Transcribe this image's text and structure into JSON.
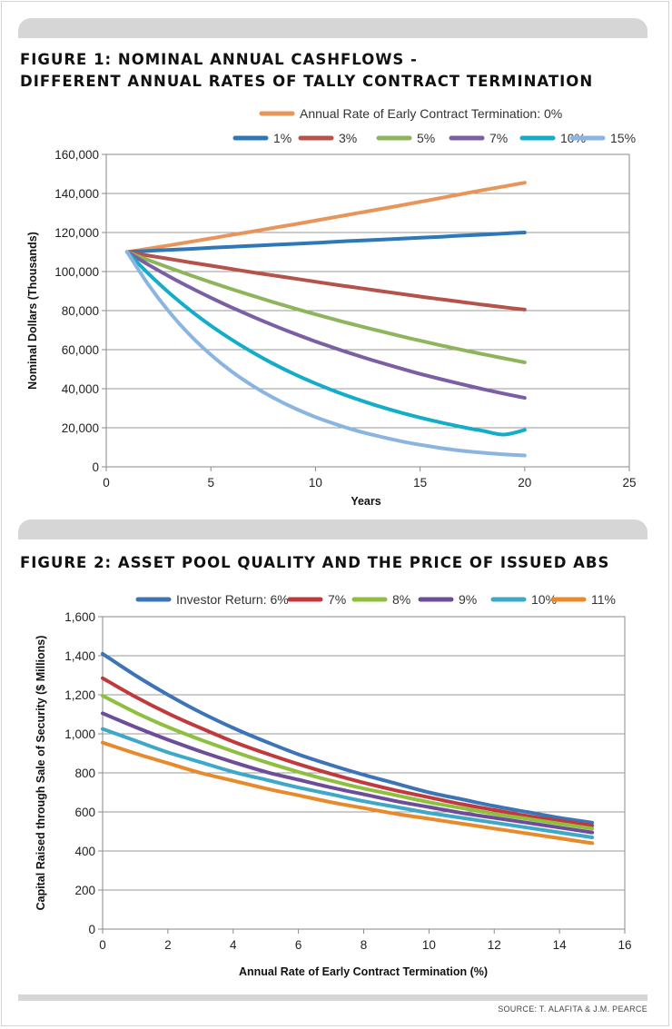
{
  "figure1": {
    "title_line1": "FIGURE 1: NOMINAL ANNUAL CASHFLOWS -",
    "title_line2": "DIFFERENT ANNUAL RATES OF TALLY CONTRACT TERMINATION"
  },
  "figure2": {
    "title": "FIGURE 2: ASSET POOL QUALITY AND THE PRICE OF ISSUED ABS"
  },
  "source": "SOURCE: T. ALAFITA & J.M. PEARCE",
  "chart_data": [
    {
      "type": "line",
      "title": "FIGURE 1: NOMINAL ANNUAL CASHFLOWS - DIFFERENT ANNUAL RATES OF TALLY CONTRACT TERMINATION",
      "xlabel": "Years",
      "ylabel": "Nominal Dollars (Thousands)",
      "xlim": [
        0,
        25
      ],
      "ylim": [
        0,
        160000
      ],
      "xticks": [
        0,
        5,
        10,
        15,
        20,
        25
      ],
      "yticks": [
        0,
        20000,
        40000,
        60000,
        80000,
        100000,
        120000,
        140000,
        160000
      ],
      "ytick_labels": [
        "0",
        "20,000",
        "40,000",
        "60,000",
        "80,000",
        "100,000",
        "120,000",
        "140,000",
        "160,000"
      ],
      "grid": "horizontal",
      "legend_position": "top",
      "x": [
        1,
        2,
        3,
        4,
        5,
        6,
        7,
        8,
        9,
        10,
        11,
        12,
        13,
        14,
        15,
        16,
        17,
        18,
        19,
        20
      ],
      "series": [
        {
          "name": "Annual Rate of Early Contract Termination: 0%",
          "legend_label": "Annual Rate of Early Contract Termination: 0%",
          "color": "#e8955a",
          "values": [
            110000,
            111700,
            113400,
            115200,
            117000,
            118800,
            120500,
            122400,
            124200,
            126100,
            128000,
            129900,
            131800,
            133700,
            135700,
            137700,
            139700,
            141700,
            143600,
            145500
          ]
        },
        {
          "name": "1%",
          "legend_label": "1%",
          "color": "#2f78b8",
          "values": [
            110000,
            110600,
            111100,
            111600,
            112200,
            112700,
            113200,
            113700,
            114200,
            114700,
            115300,
            115800,
            116300,
            116800,
            117300,
            117800,
            118400,
            118900,
            119500,
            120000
          ]
        },
        {
          "name": "3%",
          "legend_label": "3%",
          "color": "#b5524a",
          "values": [
            110000,
            108200,
            106500,
            104700,
            103000,
            101300,
            99600,
            98000,
            96400,
            94800,
            93200,
            91700,
            90200,
            88700,
            87200,
            85800,
            84400,
            83000,
            81700,
            80500
          ]
        },
        {
          "name": "5%",
          "legend_label": "5%",
          "color": "#8fb55c",
          "values": [
            110000,
            105900,
            102000,
            98200,
            94500,
            91000,
            87600,
            84300,
            81100,
            78100,
            75200,
            72400,
            69700,
            67100,
            64600,
            62200,
            59900,
            57700,
            55600,
            53500
          ]
        },
        {
          "name": "7%",
          "legend_label": "7%",
          "color": "#7b5ea3",
          "values": [
            110000,
            103600,
            97600,
            91900,
            86600,
            81600,
            76900,
            72400,
            68200,
            64200,
            60500,
            57000,
            53700,
            50600,
            47600,
            44900,
            42300,
            39800,
            37500,
            35300
          ]
        },
        {
          "name": "10%",
          "legend_label": "10%",
          "color": "#13adc9",
          "values": [
            110000,
            99100,
            89200,
            80300,
            72300,
            65100,
            58600,
            52700,
            47400,
            42700,
            38400,
            34600,
            31100,
            28000,
            25200,
            22700,
            20400,
            18400,
            16500,
            18900
          ]
        },
        {
          "name": "15%",
          "legend_label": "15%",
          "color": "#8ab5e0",
          "values": [
            110000,
            93500,
            79500,
            67500,
            57400,
            48800,
            41500,
            35300,
            30000,
            25500,
            21700,
            18400,
            15700,
            13300,
            11300,
            9600,
            8200,
            7200,
            6400,
            5800
          ]
        }
      ]
    },
    {
      "type": "line",
      "title": "FIGURE 2: ASSET POOL QUALITY AND THE PRICE OF ISSUED ABS",
      "xlabel": "Annual Rate of Early Contract Termination (%)",
      "ylabel": "Capital Raised through Sale of Security ($ Millions)",
      "xlim": [
        0,
        16
      ],
      "ylim": [
        0,
        1600
      ],
      "xticks": [
        0,
        2,
        4,
        6,
        8,
        10,
        12,
        14,
        16
      ],
      "yticks": [
        0,
        200,
        400,
        600,
        800,
        1000,
        1200,
        1400,
        1600
      ],
      "ytick_labels": [
        "0",
        "200",
        "400",
        "600",
        "800",
        "1,000",
        "1,200",
        "1,400",
        "1,600"
      ],
      "grid": "horizontal",
      "legend_position": "top",
      "x": [
        0,
        1,
        2,
        3,
        4,
        5,
        6,
        7,
        8,
        9,
        10,
        11,
        12,
        13,
        14,
        15
      ],
      "series": [
        {
          "name": "Investor Return: 6%",
          "legend_label": "Investor Return: 6%",
          "color": "#3d74b8",
          "values": [
            1410,
            1300,
            1200,
            1110,
            1030,
            960,
            895,
            840,
            790,
            745,
            700,
            665,
            630,
            600,
            570,
            545
          ]
        },
        {
          "name": "7%",
          "legend_label": "7%",
          "color": "#c0393c",
          "values": [
            1285,
            1190,
            1105,
            1030,
            960,
            900,
            845,
            795,
            750,
            710,
            675,
            640,
            610,
            580,
            555,
            530
          ]
        },
        {
          "name": "8%",
          "legend_label": "8%",
          "color": "#8fbf3e",
          "values": [
            1195,
            1110,
            1035,
            970,
            910,
            855,
            805,
            760,
            720,
            685,
            650,
            620,
            590,
            565,
            540,
            515
          ]
        },
        {
          "name": "9%",
          "legend_label": "9%",
          "color": "#6d4c9a",
          "values": [
            1105,
            1035,
            970,
            910,
            855,
            805,
            765,
            725,
            690,
            655,
            625,
            595,
            570,
            545,
            520,
            495
          ]
        },
        {
          "name": "10%",
          "legend_label": "10%",
          "color": "#3ea8c8",
          "values": [
            1025,
            965,
            905,
            855,
            805,
            765,
            725,
            690,
            655,
            625,
            595,
            570,
            545,
            520,
            495,
            470
          ]
        },
        {
          "name": "11%",
          "legend_label": "11%",
          "color": "#e8892c",
          "values": [
            955,
            900,
            850,
            800,
            760,
            720,
            685,
            650,
            620,
            590,
            565,
            540,
            515,
            490,
            465,
            440
          ]
        }
      ]
    }
  ]
}
